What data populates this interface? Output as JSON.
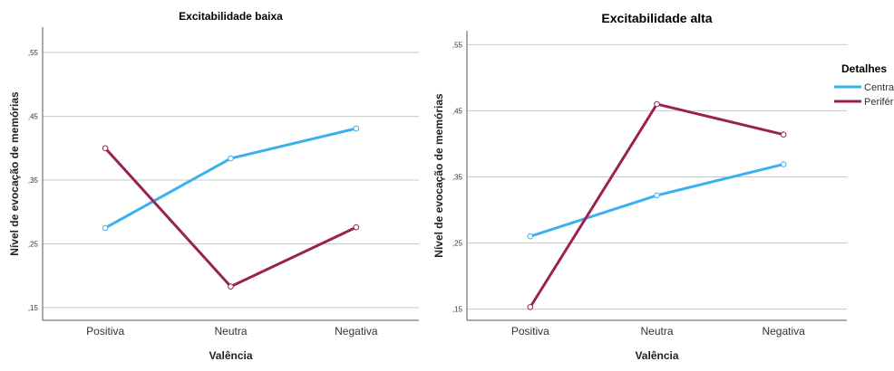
{
  "legend": {
    "title": "Detalhes",
    "items": [
      {
        "label": "Central",
        "color": "#3cb0ef"
      },
      {
        "label": "Periférico",
        "color": "#9a2155"
      }
    ]
  },
  "chart_data": [
    {
      "type": "line",
      "title": "Excitabilidade baixa",
      "xlabel": "Valência",
      "ylabel": "Nível de evocação de memórias",
      "categories": [
        "Positiva",
        "Neutra",
        "Negativa"
      ],
      "yticks": [
        ",15",
        ",25",
        ",35",
        ",45",
        ",55"
      ],
      "ytick_values": [
        0.15,
        0.25,
        0.35,
        0.45,
        0.55
      ],
      "ylim": [
        0.13,
        0.59
      ],
      "grid": true,
      "series": [
        {
          "name": "Central",
          "color": "#3cb0ef",
          "values": [
            0.275,
            0.384,
            0.431
          ]
        },
        {
          "name": "Periférico",
          "color": "#9a2155",
          "values": [
            0.4,
            0.183,
            0.276
          ]
        }
      ]
    },
    {
      "type": "line",
      "title": "Excitabilidade alta",
      "xlabel": "Valência",
      "ylabel": "Nível de evocação de memórias",
      "categories": [
        "Positiva",
        "Neutra",
        "Negativa"
      ],
      "yticks": [
        ",15",
        ",25",
        ",35",
        ",45",
        ",55"
      ],
      "ytick_values": [
        0.15,
        0.25,
        0.35,
        0.45,
        0.55
      ],
      "ylim": [
        0.133,
        0.571
      ],
      "grid": true,
      "legend_position": "right",
      "series": [
        {
          "name": "Central",
          "color": "#3cb0ef",
          "values": [
            0.26,
            0.322,
            0.369
          ]
        },
        {
          "name": "Periférico",
          "color": "#9a2155",
          "values": [
            0.153,
            0.46,
            0.414
          ]
        }
      ]
    }
  ]
}
